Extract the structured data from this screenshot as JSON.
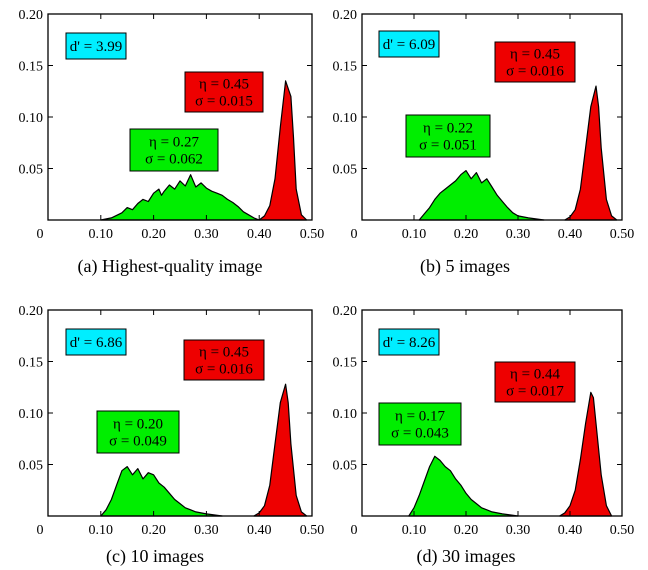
{
  "chart_data": [
    {
      "type": "area",
      "caption": "(a) Highest-quality image",
      "xlim": [
        0,
        0.5
      ],
      "ylim": [
        0,
        0.2
      ],
      "x_ticks": [
        "0",
        "0.10",
        "0.20",
        "0.30",
        "0.40",
        "0.50"
      ],
      "y_ticks": [
        "0.05",
        "0.10",
        "0.15",
        "0.20"
      ],
      "dprime_label": "d' = 3.99",
      "series": [
        {
          "color": "#00ee00",
          "label_lines": [
            "η = 0.27",
            "σ = 0.062"
          ],
          "points": [
            [
              0.1,
              0
            ],
            [
              0.12,
              0.002
            ],
            [
              0.14,
              0.007
            ],
            [
              0.15,
              0.012
            ],
            [
              0.16,
              0.01
            ],
            [
              0.17,
              0.016
            ],
            [
              0.18,
              0.02
            ],
            [
              0.19,
              0.018
            ],
            [
              0.2,
              0.026
            ],
            [
              0.21,
              0.03
            ],
            [
              0.215,
              0.024
            ],
            [
              0.22,
              0.028
            ],
            [
              0.23,
              0.034
            ],
            [
              0.24,
              0.03
            ],
            [
              0.25,
              0.038
            ],
            [
              0.26,
              0.033
            ],
            [
              0.27,
              0.044
            ],
            [
              0.28,
              0.032
            ],
            [
              0.29,
              0.036
            ],
            [
              0.3,
              0.031
            ],
            [
              0.31,
              0.028
            ],
            [
              0.32,
              0.026
            ],
            [
              0.33,
              0.024
            ],
            [
              0.34,
              0.02
            ],
            [
              0.35,
              0.017
            ],
            [
              0.36,
              0.013
            ],
            [
              0.37,
              0.008
            ],
            [
              0.38,
              0.005
            ],
            [
              0.39,
              0.002
            ],
            [
              0.4,
              0
            ]
          ]
        },
        {
          "color": "#ee0000",
          "label_lines": [
            "η = 0.45",
            "σ = 0.015"
          ],
          "points": [
            [
              0.4,
              0
            ],
            [
              0.41,
              0.004
            ],
            [
              0.42,
              0.014
            ],
            [
              0.43,
              0.04
            ],
            [
              0.44,
              0.09
            ],
            [
              0.45,
              0.135
            ],
            [
              0.46,
              0.12
            ],
            [
              0.465,
              0.08
            ],
            [
              0.47,
              0.03
            ],
            [
              0.48,
              0.005
            ],
            [
              0.49,
              0
            ]
          ]
        }
      ]
    },
    {
      "type": "area",
      "caption": "(b) 5 images",
      "xlim": [
        0,
        0.5
      ],
      "ylim": [
        0,
        0.2
      ],
      "x_ticks": [
        "0",
        "0.10",
        "0.20",
        "0.30",
        "0.40",
        "0.50"
      ],
      "y_ticks": [
        "0.05",
        "0.10",
        "0.15",
        "0.20"
      ],
      "dprime_label": "d' = 6.09",
      "series": [
        {
          "color": "#00ee00",
          "label_lines": [
            "η = 0.22",
            "σ = 0.051"
          ],
          "points": [
            [
              0.11,
              0
            ],
            [
              0.12,
              0.006
            ],
            [
              0.13,
              0.012
            ],
            [
              0.14,
              0.02
            ],
            [
              0.15,
              0.026
            ],
            [
              0.16,
              0.03
            ],
            [
              0.17,
              0.034
            ],
            [
              0.18,
              0.038
            ],
            [
              0.19,
              0.044
            ],
            [
              0.2,
              0.048
            ],
            [
              0.21,
              0.04
            ],
            [
              0.22,
              0.046
            ],
            [
              0.23,
              0.036
            ],
            [
              0.24,
              0.04
            ],
            [
              0.25,
              0.032
            ],
            [
              0.26,
              0.024
            ],
            [
              0.27,
              0.018
            ],
            [
              0.28,
              0.012
            ],
            [
              0.29,
              0.007
            ],
            [
              0.3,
              0.004
            ],
            [
              0.32,
              0.002
            ],
            [
              0.35,
              0
            ]
          ]
        },
        {
          "color": "#ee0000",
          "label_lines": [
            "η = 0.45",
            "σ = 0.016"
          ],
          "points": [
            [
              0.39,
              0
            ],
            [
              0.4,
              0.003
            ],
            [
              0.41,
              0.01
            ],
            [
              0.42,
              0.03
            ],
            [
              0.43,
              0.07
            ],
            [
              0.44,
              0.11
            ],
            [
              0.45,
              0.13
            ],
            [
              0.455,
              0.11
            ],
            [
              0.46,
              0.07
            ],
            [
              0.47,
              0.02
            ],
            [
              0.48,
              0.004
            ],
            [
              0.49,
              0
            ]
          ]
        }
      ]
    },
    {
      "type": "area",
      "caption": "(c) 10 images",
      "xlim": [
        0,
        0.5
      ],
      "ylim": [
        0,
        0.2
      ],
      "x_ticks": [
        "0",
        "0.10",
        "0.20",
        "0.30",
        "0.40",
        "0.50"
      ],
      "y_ticks": [
        "0.05",
        "0.10",
        "0.15",
        "0.20"
      ],
      "dprime_label": "d' = 6.86",
      "series": [
        {
          "color": "#00ee00",
          "label_lines": [
            "η = 0.20",
            "σ = 0.049"
          ],
          "points": [
            [
              0.1,
              0
            ],
            [
              0.11,
              0.006
            ],
            [
              0.12,
              0.016
            ],
            [
              0.13,
              0.03
            ],
            [
              0.14,
              0.044
            ],
            [
              0.15,
              0.048
            ],
            [
              0.16,
              0.04
            ],
            [
              0.17,
              0.046
            ],
            [
              0.18,
              0.036
            ],
            [
              0.19,
              0.042
            ],
            [
              0.2,
              0.04
            ],
            [
              0.21,
              0.032
            ],
            [
              0.22,
              0.028
            ],
            [
              0.23,
              0.022
            ],
            [
              0.24,
              0.016
            ],
            [
              0.25,
              0.012
            ],
            [
              0.26,
              0.008
            ],
            [
              0.27,
              0.006
            ],
            [
              0.28,
              0.004
            ],
            [
              0.3,
              0.002
            ],
            [
              0.33,
              0
            ]
          ]
        },
        {
          "color": "#ee0000",
          "label_lines": [
            "η = 0.45",
            "σ = 0.016"
          ],
          "points": [
            [
              0.39,
              0
            ],
            [
              0.4,
              0.003
            ],
            [
              0.41,
              0.01
            ],
            [
              0.42,
              0.03
            ],
            [
              0.43,
              0.07
            ],
            [
              0.44,
              0.11
            ],
            [
              0.45,
              0.128
            ],
            [
              0.455,
              0.11
            ],
            [
              0.46,
              0.07
            ],
            [
              0.47,
              0.02
            ],
            [
              0.48,
              0.004
            ],
            [
              0.49,
              0
            ]
          ]
        }
      ]
    },
    {
      "type": "area",
      "caption": "(d) 30 images",
      "xlim": [
        0,
        0.5
      ],
      "ylim": [
        0,
        0.2
      ],
      "x_ticks": [
        "0",
        "0.10",
        "0.20",
        "0.30",
        "0.40",
        "0.50"
      ],
      "y_ticks": [
        "0.05",
        "0.10",
        "0.15",
        "0.20"
      ],
      "dprime_label": "d' = 8.26",
      "series": [
        {
          "color": "#00ee00",
          "label_lines": [
            "η = 0.17",
            "σ = 0.043"
          ],
          "points": [
            [
              0.09,
              0
            ],
            [
              0.1,
              0.008
            ],
            [
              0.11,
              0.02
            ],
            [
              0.12,
              0.034
            ],
            [
              0.13,
              0.048
            ],
            [
              0.14,
              0.058
            ],
            [
              0.15,
              0.054
            ],
            [
              0.16,
              0.048
            ],
            [
              0.17,
              0.044
            ],
            [
              0.18,
              0.036
            ],
            [
              0.19,
              0.03
            ],
            [
              0.2,
              0.022
            ],
            [
              0.21,
              0.016
            ],
            [
              0.22,
              0.012
            ],
            [
              0.23,
              0.008
            ],
            [
              0.24,
              0.006
            ],
            [
              0.25,
              0.004
            ],
            [
              0.27,
              0.002
            ],
            [
              0.3,
              0
            ]
          ]
        },
        {
          "color": "#ee0000",
          "label_lines": [
            "η = 0.44",
            "σ = 0.017"
          ],
          "points": [
            [
              0.38,
              0
            ],
            [
              0.39,
              0.003
            ],
            [
              0.4,
              0.01
            ],
            [
              0.41,
              0.025
            ],
            [
              0.42,
              0.055
            ],
            [
              0.43,
              0.09
            ],
            [
              0.44,
              0.12
            ],
            [
              0.445,
              0.115
            ],
            [
              0.45,
              0.09
            ],
            [
              0.46,
              0.04
            ],
            [
              0.47,
              0.01
            ],
            [
              0.48,
              0
            ]
          ]
        }
      ]
    }
  ],
  "colors": {
    "dprime_box": "#00eeff",
    "green": "#00ee00",
    "red": "#ee0000"
  }
}
